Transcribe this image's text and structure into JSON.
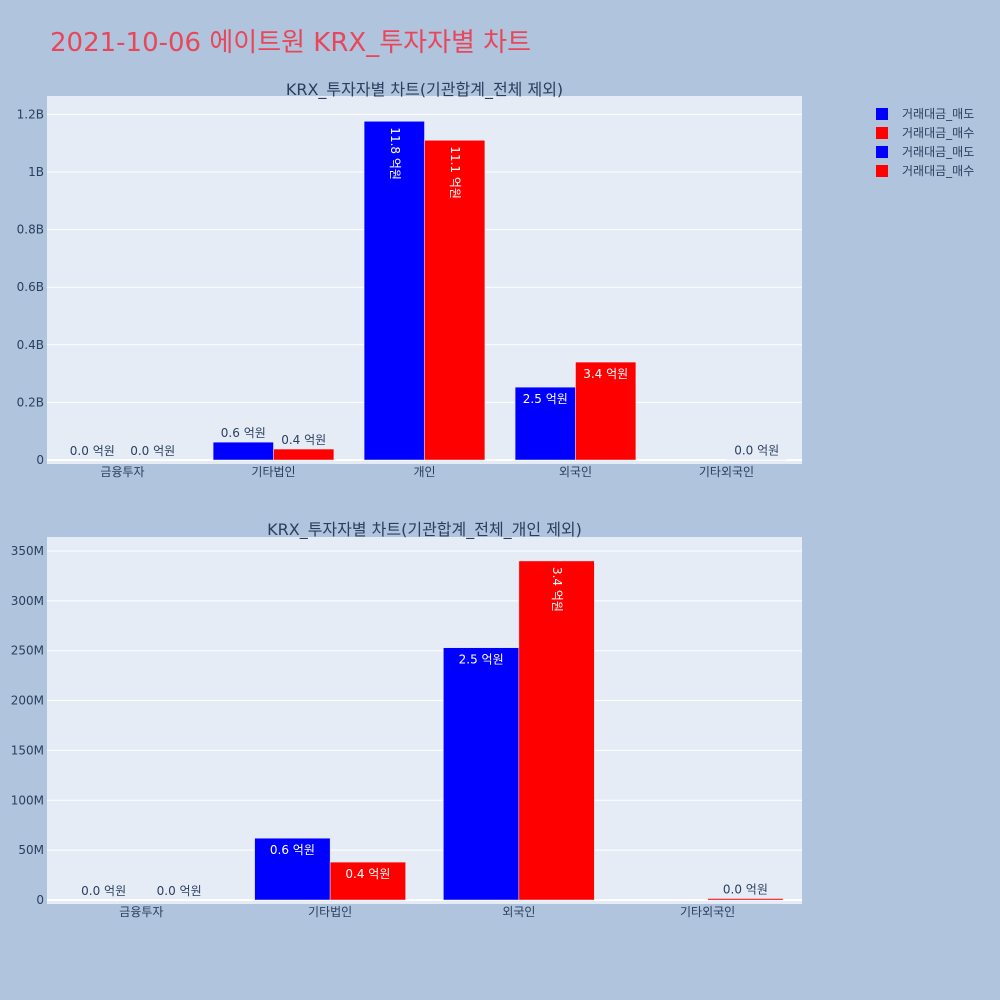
{
  "page": {
    "title": "2021-10-06 에이트원 KRX_투자자별 차트"
  },
  "legend": [
    {
      "label": "거래대금_매도",
      "color": "#0000ff"
    },
    {
      "label": "거래대금_매수",
      "color": "#ff0000"
    },
    {
      "label": "거래대금_매도",
      "color": "#0000ff"
    },
    {
      "label": "거래대금_매수",
      "color": "#ff0000"
    }
  ],
  "chart_data": [
    {
      "type": "bar",
      "title": "KRX_투자자별 차트(기관합계_전체 제외)",
      "categories": [
        "금융투자",
        "기타법인",
        "개인",
        "외국인",
        "기타외국인"
      ],
      "ylim": [
        0,
        1250000000
      ],
      "yticks": [
        0,
        200000000,
        400000000,
        600000000,
        800000000,
        1000000000,
        1200000000
      ],
      "yticklabels": [
        "0",
        "0.2B",
        "0.4B",
        "0.6B",
        "0.8B",
        "1B",
        "1.2B"
      ],
      "grid": true,
      "series": [
        {
          "name": "거래대금_매도",
          "color": "#0000ff",
          "values": [
            0,
            62000000,
            1176000000,
            253000000,
            0
          ],
          "labels": [
            "0.0 억원",
            "0.6 억원",
            "11.8 억원",
            "2.5 억원",
            ""
          ]
        },
        {
          "name": "거래대금_매수",
          "color": "#ff0000",
          "values": [
            0,
            38000000,
            1110000000,
            340000000,
            1500000
          ],
          "labels": [
            "0.0 억원",
            "0.4 억원",
            "11.1 억원",
            "3.4 억원",
            "0.0 억원"
          ]
        }
      ]
    },
    {
      "type": "bar",
      "title": "KRX_투자자별 차트(기관합계_전체_개인 제외)",
      "categories": [
        "금융투자",
        "기타법인",
        "외국인",
        "기타외국인"
      ],
      "ylim": [
        0,
        360000000
      ],
      "yticks": [
        0,
        50000000,
        100000000,
        150000000,
        200000000,
        250000000,
        300000000,
        350000000
      ],
      "yticklabels": [
        "0",
        "50M",
        "100M",
        "150M",
        "200M",
        "250M",
        "300M",
        "350M"
      ],
      "grid": true,
      "series": [
        {
          "name": "거래대금_매도",
          "color": "#0000ff",
          "values": [
            0,
            62000000,
            253000000,
            0
          ],
          "labels": [
            "0.0 억원",
            "0.6 억원",
            "2.5 억원",
            ""
          ]
        },
        {
          "name": "거래대금_매수",
          "color": "#ff0000",
          "values": [
            0,
            38000000,
            340000000,
            1500000
          ],
          "labels": [
            "0.0 억원",
            "0.4 억원",
            "3.4 억원",
            "0.0 억원"
          ]
        }
      ]
    }
  ]
}
